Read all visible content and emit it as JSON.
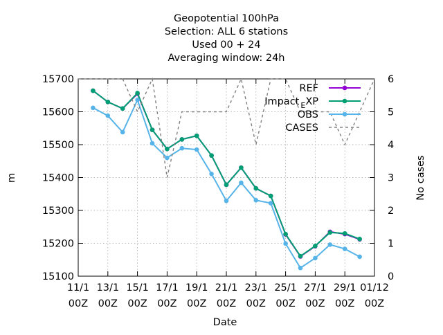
{
  "chart_data": {
    "type": "line",
    "title_lines": [
      "Geopotential 100hPa",
      "Selection: ALL      6 stations",
      "Used  00 + 24",
      "Averaging window: 24h"
    ],
    "xlabel": "Date",
    "ylabel": "m",
    "y2label": "No cases",
    "xlim": [
      0,
      20
    ],
    "ylim": [
      15100,
      15700
    ],
    "y2lim": [
      0,
      6
    ],
    "x_ticks": [
      {
        "x": 0,
        "line1": "11/1",
        "line2": "00Z"
      },
      {
        "x": 2,
        "line1": "13/1",
        "line2": "00Z"
      },
      {
        "x": 4,
        "line1": "15/1",
        "line2": "00Z"
      },
      {
        "x": 6,
        "line1": "17/1",
        "line2": "00Z"
      },
      {
        "x": 8,
        "line1": "19/1",
        "line2": "00Z"
      },
      {
        "x": 10,
        "line1": "21/1",
        "line2": "00Z"
      },
      {
        "x": 12,
        "line1": "23/1",
        "line2": "00Z"
      },
      {
        "x": 14,
        "line1": "25/1",
        "line2": "00Z"
      },
      {
        "x": 16,
        "line1": "27/1",
        "line2": "00Z"
      },
      {
        "x": 18,
        "line1": "29/1",
        "line2": "00Z"
      },
      {
        "x": 20,
        "line1": "01/12",
        "line2": "00Z"
      }
    ],
    "y_ticks": [
      15100,
      15200,
      15300,
      15400,
      15500,
      15600,
      15700
    ],
    "y2_ticks": [
      0,
      1,
      2,
      3,
      4,
      5,
      6
    ],
    "x": [
      1,
      2,
      3,
      4,
      5,
      6,
      7,
      8,
      9,
      10,
      11,
      12,
      13,
      14,
      15,
      16,
      17,
      18,
      19
    ],
    "series": [
      {
        "name": "REF",
        "color": "#9400d3",
        "marker": "plus-filled",
        "dash": false,
        "axis": "y1",
        "values": [
          15664,
          15630,
          15610,
          15655,
          15545,
          15487,
          15516,
          15527,
          15467,
          15378,
          15430,
          15367,
          15344,
          15227,
          15160,
          15191,
          15235,
          15228,
          15212
        ]
      },
      {
        "name": "Impact_EXP",
        "label_main": "Impact",
        "label_sub": "E",
        "label_rest": "XP",
        "color": "#009e73",
        "marker": "plus-filled",
        "dash": false,
        "axis": "y1",
        "values": [
          15664,
          15630,
          15610,
          15657,
          15545,
          15487,
          15516,
          15527,
          15467,
          15378,
          15430,
          15367,
          15344,
          15228,
          15161,
          15192,
          15233,
          15230,
          15213
        ]
      },
      {
        "name": "OBS",
        "color": "#56b4e9",
        "marker": "plus-filled",
        "dash": false,
        "axis": "y1",
        "values": [
          15612,
          15588,
          15538,
          15636,
          15504,
          15460,
          15489,
          15485,
          15411,
          15329,
          15384,
          15331,
          15322,
          15199,
          15125,
          15155,
          15196,
          15183,
          15159
        ]
      },
      {
        "name": "CASES",
        "color": "#808080",
        "marker": "none",
        "dash": true,
        "axis": "y2",
        "x": [
          0,
          1,
          2,
          3,
          4,
          5,
          6,
          7,
          8,
          9,
          10,
          11,
          12,
          13,
          14,
          15,
          16,
          17,
          18,
          19,
          20
        ],
        "values": [
          6,
          6,
          6,
          6,
          5,
          6,
          3,
          5,
          5,
          5,
          5,
          6,
          4,
          6,
          6,
          5,
          5,
          5,
          4,
          5,
          6
        ]
      }
    ],
    "legend_position": "top-right",
    "grid": true
  }
}
